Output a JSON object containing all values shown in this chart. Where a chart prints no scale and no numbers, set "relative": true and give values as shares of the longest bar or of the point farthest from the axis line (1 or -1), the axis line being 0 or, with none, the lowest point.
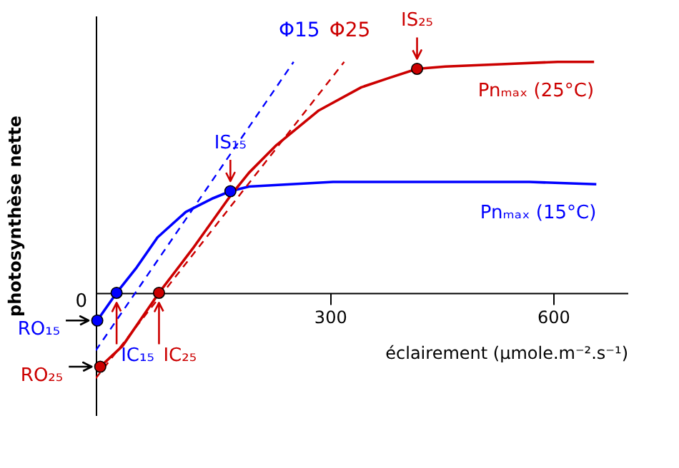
{
  "chart_data": {
    "type": "line",
    "relative": true,
    "xlabel": "éclairement (µmole.m⁻².s⁻¹)",
    "ylabel": "photosynthèse nette",
    "xlim": [
      -15,
      700
    ],
    "xticks": [
      300,
      600
    ],
    "tick_labels": "x",
    "grid": false,
    "series": [
      {
        "name": "Pnₘₐₓ (15°C)",
        "color": "#0000ff",
        "line_style": "solid",
        "marker": "none",
        "x": [
          -13,
          13,
          40,
          68,
          106,
          143,
          166,
          191,
          247,
          304,
          379,
          474,
          568,
          658
        ],
        "values": [
          -0.12,
          0,
          0.11,
          0.24,
          0.35,
          0.41,
          0.44,
          0.46,
          0.47,
          0.48,
          0.48,
          0.48,
          0.48,
          0.47
        ]
      },
      {
        "name": "Pnₘₐₓ (25°C)",
        "color": "#cc0000",
        "line_style": "solid",
        "marker": "none",
        "x": [
          -9,
          21,
          70,
          115,
          166,
          191,
          228,
          285,
          342,
          379,
          417,
          455,
          530,
          606,
          655
        ],
        "values": [
          -0.32,
          -0.23,
          0,
          0.19,
          0.42,
          0.52,
          0.64,
          0.79,
          0.89,
          0.93,
          0.97,
          0.98,
          0.99,
          1,
          1
        ]
      },
      {
        "name": "Φ15",
        "color": "#0000ff",
        "line_style": "dashed",
        "marker": "none",
        "x": [
          -15,
          251
        ],
        "values": [
          -0.25,
          1
        ]
      },
      {
        "name": "Φ25",
        "color": "#cc0000",
        "line_style": "dashed",
        "marker": "none",
        "x": [
          -15,
          319
        ],
        "values": [
          -0.37,
          1
        ]
      },
      {
        "type": "scatter",
        "color": "#0000ff",
        "marker": "circle",
        "x": [
          -13,
          13,
          166
        ],
        "values": [
          -0.12,
          0,
          0.44
        ]
      },
      {
        "type": "scatter",
        "color": "#cc0000",
        "marker": "circle",
        "x": [
          -9,
          70,
          417
        ],
        "values": [
          -0.32,
          0,
          0.97
        ]
      }
    ],
    "annotations": [
      {
        "text": "RO₁₅",
        "x": -13,
        "y": -0.12
      },
      {
        "text": "RO₂₅",
        "x": -9,
        "y": -0.32
      },
      {
        "text": "IC₁₅",
        "x": 13,
        "y": 0
      },
      {
        "text": "IC₂₅",
        "x": 70,
        "y": 0
      },
      {
        "text": "IS₁₅",
        "x": 166,
        "y": 0.44
      },
      {
        "text": "IS₂₅",
        "x": 417,
        "y": 0.97
      },
      "0"
    ]
  }
}
